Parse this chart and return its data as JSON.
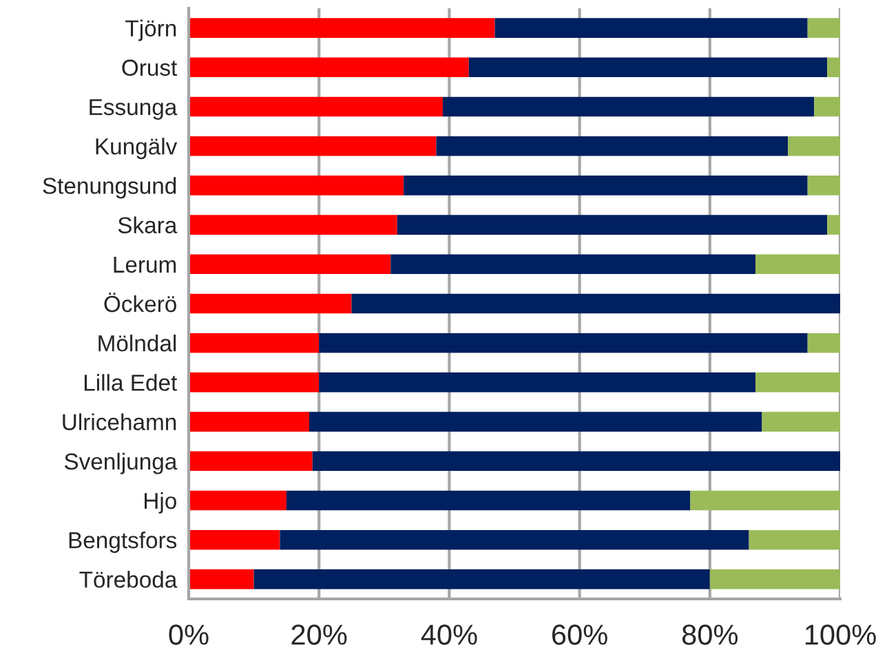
{
  "chart_data": {
    "type": "bar",
    "orientation": "horizontal",
    "stacked": true,
    "categories": [
      "Tjörn",
      "Orust",
      "Essunga",
      "Kungälv",
      "Stenungsund",
      "Skara",
      "Lerum",
      "Öckerö",
      "Mölndal",
      "Lilla Edet",
      "Ulricehamn",
      "Svenljunga",
      "Hjo",
      "Bengtsfors",
      "Töreboda"
    ],
    "series": [
      {
        "color": "#ff0000",
        "values": [
          47,
          43,
          39,
          38,
          33,
          32,
          31,
          25,
          20,
          20,
          18.5,
          19,
          15,
          14,
          10
        ]
      },
      {
        "color": "#002060",
        "values": [
          48,
          55,
          57,
          54,
          62,
          66,
          56,
          75,
          75,
          67,
          69.5,
          81,
          62,
          72,
          70
        ]
      },
      {
        "color": "#9bbb59",
        "values": [
          5,
          2,
          4,
          8,
          5,
          2,
          13,
          0,
          5,
          13,
          12,
          0,
          23,
          14,
          20
        ]
      }
    ],
    "xlim": [
      0,
      100
    ],
    "xticks": [
      {
        "value": 0,
        "label": "0%"
      },
      {
        "value": 20,
        "label": "20%"
      },
      {
        "value": 40,
        "label": "40%"
      },
      {
        "value": 60,
        "label": "60%"
      },
      {
        "value": 80,
        "label": "80%"
      },
      {
        "value": 100,
        "label": "100%"
      }
    ],
    "grid": "x"
  }
}
